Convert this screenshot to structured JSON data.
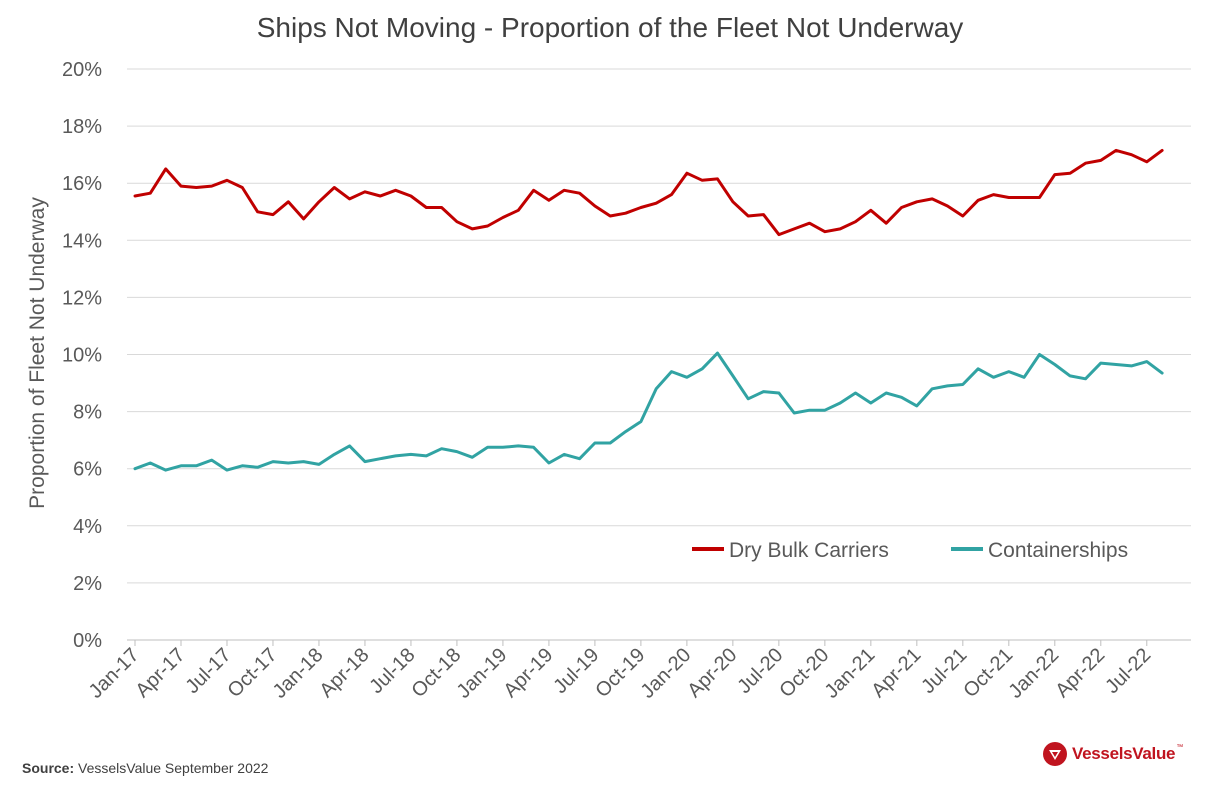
{
  "source": {
    "label": "Source:",
    "text": "VesselsValue September 2022"
  },
  "brand": {
    "name": "VesselsValue",
    "tm": "™",
    "logo_color": "#c0141f"
  },
  "chart_data": {
    "type": "line",
    "title": "Ships Not Moving - Proportion of the Fleet Not Underway",
    "xlabel": "",
    "ylabel": "Proportion of Fleet Not Underway",
    "ylim": [
      0,
      20
    ],
    "y_ticks": [
      "0%",
      "2%",
      "4%",
      "6%",
      "8%",
      "10%",
      "12%",
      "14%",
      "16%",
      "18%",
      "20%"
    ],
    "x_tick_labels": [
      "Jan-17",
      "Apr-17",
      "Jul-17",
      "Oct-17",
      "Jan-18",
      "Apr-18",
      "Jul-18",
      "Oct-18",
      "Jan-19",
      "Apr-19",
      "Jul-19",
      "Oct-19",
      "Jan-20",
      "Apr-20",
      "Jul-20",
      "Oct-20",
      "Jan-21",
      "Apr-21",
      "Jul-21",
      "Oct-21",
      "Jan-22",
      "Apr-22",
      "Jul-22"
    ],
    "x": [
      "Jan-17",
      "Feb-17",
      "Mar-17",
      "Apr-17",
      "May-17",
      "Jun-17",
      "Jul-17",
      "Aug-17",
      "Sep-17",
      "Oct-17",
      "Nov-17",
      "Dec-17",
      "Jan-18",
      "Feb-18",
      "Mar-18",
      "Apr-18",
      "May-18",
      "Jun-18",
      "Jul-18",
      "Aug-18",
      "Sep-18",
      "Oct-18",
      "Nov-18",
      "Dec-18",
      "Jan-19",
      "Feb-19",
      "Mar-19",
      "Apr-19",
      "May-19",
      "Jun-19",
      "Jul-19",
      "Aug-19",
      "Sep-19",
      "Oct-19",
      "Nov-19",
      "Dec-19",
      "Jan-20",
      "Feb-20",
      "Mar-20",
      "Apr-20",
      "May-20",
      "Jun-20",
      "Jul-20",
      "Aug-20",
      "Sep-20",
      "Oct-20",
      "Nov-20",
      "Dec-20",
      "Jan-21",
      "Feb-21",
      "Mar-21",
      "Apr-21",
      "May-21",
      "Jun-21",
      "Jul-21",
      "Aug-21",
      "Sep-21",
      "Oct-21",
      "Nov-21",
      "Dec-21",
      "Jan-22",
      "Feb-22",
      "Mar-22",
      "Apr-22",
      "May-22",
      "Jun-22",
      "Jul-22",
      "Aug-22"
    ],
    "grid": true,
    "legend_position": "lower-right",
    "series": [
      {
        "name": "Dry Bulk Carriers",
        "color": "#c00000",
        "values": [
          15.55,
          15.65,
          16.5,
          15.9,
          15.85,
          15.9,
          16.1,
          15.85,
          15.0,
          14.9,
          15.35,
          14.75,
          15.35,
          15.85,
          15.45,
          15.7,
          15.55,
          15.75,
          15.55,
          15.15,
          15.15,
          14.65,
          14.4,
          14.5,
          14.8,
          15.05,
          15.75,
          15.4,
          15.75,
          15.65,
          15.2,
          14.85,
          14.95,
          15.15,
          15.3,
          15.6,
          16.35,
          16.1,
          16.15,
          15.35,
          14.85,
          14.9,
          14.2,
          14.4,
          14.6,
          14.3,
          14.4,
          14.65,
          15.05,
          14.6,
          15.15,
          15.35,
          15.45,
          15.2,
          14.85,
          15.4,
          15.6,
          15.5,
          15.5,
          15.5,
          16.3,
          16.35,
          16.7,
          16.8,
          17.15,
          17.0,
          16.75,
          17.15
        ]
      },
      {
        "name": "Containerships",
        "color": "#31a3a3",
        "values": [
          6.0,
          6.2,
          5.95,
          6.1,
          6.1,
          6.3,
          5.95,
          6.1,
          6.05,
          6.25,
          6.2,
          6.25,
          6.15,
          6.5,
          6.8,
          6.25,
          6.35,
          6.45,
          6.5,
          6.45,
          6.7,
          6.6,
          6.4,
          6.75,
          6.75,
          6.8,
          6.75,
          6.2,
          6.5,
          6.35,
          6.9,
          6.9,
          7.3,
          7.65,
          8.8,
          9.4,
          9.2,
          9.5,
          10.05,
          9.25,
          8.45,
          8.7,
          8.65,
          7.95,
          8.05,
          8.05,
          8.3,
          8.65,
          8.3,
          8.65,
          8.5,
          8.2,
          8.8,
          8.9,
          8.95,
          9.5,
          9.2,
          9.4,
          9.2,
          10.0,
          9.65,
          9.25,
          9.15,
          9.7,
          9.65,
          9.6,
          9.75,
          9.35
        ]
      }
    ]
  }
}
